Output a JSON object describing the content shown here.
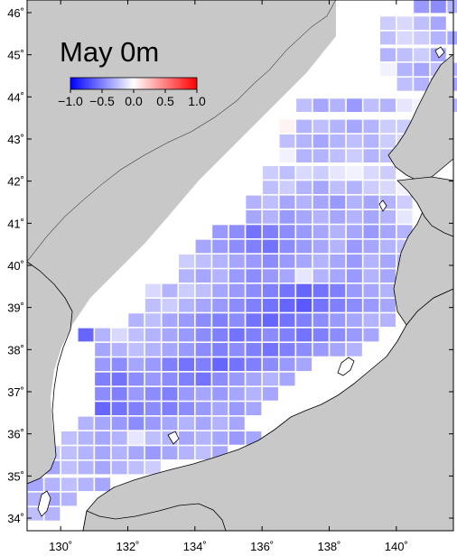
{
  "title": "May 0m",
  "colorbar": {
    "min": -1.0,
    "max": 1.0,
    "ticks": [
      "−1.0",
      "−0.5",
      "0.0",
      "0.5",
      "1.0"
    ],
    "tick_values": [
      -1.0,
      -0.5,
      0.0,
      0.5,
      1.0
    ],
    "low_color": "#0000ff",
    "mid_color": "#ffffff",
    "high_color": "#ff0000"
  },
  "axes": {
    "lon_range": [
      129,
      141.7
    ],
    "lat_range": [
      33.7,
      46.3
    ],
    "lon_ticks": [
      {
        "value": 130,
        "label": "130˚"
      },
      {
        "value": 132,
        "label": "132˚"
      },
      {
        "value": 134,
        "label": "134˚"
      },
      {
        "value": 136,
        "label": "136˚"
      },
      {
        "value": 138,
        "label": "138˚"
      },
      {
        "value": 140,
        "label": "140˚"
      }
    ],
    "lat_ticks": [
      {
        "value": 34,
        "label": "34˚"
      },
      {
        "value": 35,
        "label": "35˚"
      },
      {
        "value": 36,
        "label": "36˚"
      },
      {
        "value": 37,
        "label": "37˚"
      },
      {
        "value": 38,
        "label": "38˚"
      },
      {
        "value": 39,
        "label": "39˚"
      },
      {
        "value": 40,
        "label": "40˚"
      },
      {
        "value": 41,
        "label": "41˚"
      },
      {
        "value": 42,
        "label": "42˚"
      },
      {
        "value": 43,
        "label": "43˚"
      },
      {
        "value": 44,
        "label": "44˚"
      },
      {
        "value": 45,
        "label": "45˚"
      },
      {
        "value": 46,
        "label": "46˚"
      }
    ]
  },
  "colors": {
    "land": "#c8c8c8",
    "sea": "#ffffff",
    "coast": "#000000"
  },
  "grid": {
    "cell_lon": 0.5,
    "cell_lat": 0.35,
    "rows": [
      {
        "lat": 46.15,
        "lon_start": 140.5,
        "values": [
          -0.4,
          -0.45,
          -0.3
        ]
      },
      {
        "lat": 45.75,
        "lon_start": 139.5,
        "values": [
          -0.2,
          -0.15,
          -0.25,
          -0.35
        ]
      },
      {
        "lat": 45.4,
        "lon_start": 139.5,
        "values": [
          -0.25,
          -0.15,
          -0.2,
          -0.3,
          -0.35
        ]
      },
      {
        "lat": 45.0,
        "lon_start": 139.5,
        "values": [
          -0.3,
          -0.25,
          -0.2,
          -0.35
        ]
      },
      {
        "lat": 44.65,
        "lon_start": 139.5,
        "values": [
          -0.05,
          -0.3,
          -0.35,
          -0.25,
          -0.3
        ]
      },
      {
        "lat": 44.3,
        "lon_start": 140.0,
        "values": [
          -0.25,
          -0.3,
          -0.25,
          -0.35,
          -0.3
        ]
      },
      {
        "lat": 43.8,
        "lon_start": 137.0,
        "values": [
          -0.25,
          -0.35,
          -0.3,
          -0.4,
          -0.25,
          -0.3,
          -0.1,
          -0.05,
          -0.15,
          -0.3
        ]
      },
      {
        "lat": 43.3,
        "lon_start": 136.5,
        "values": [
          0.05,
          -0.3,
          -0.25,
          -0.3,
          -0.35,
          -0.3,
          -0.2,
          -0.2,
          -0.25
        ]
      },
      {
        "lat": 42.95,
        "lon_start": 136.5,
        "values": [
          -0.25,
          -0.3,
          -0.35,
          -0.3,
          -0.25,
          -0.3,
          -0.2,
          -0.15
        ]
      },
      {
        "lat": 42.6,
        "lon_start": 136.5,
        "values": [
          -0.05,
          -0.3,
          -0.3,
          -0.25,
          -0.2,
          -0.3,
          -0.25
        ]
      },
      {
        "lat": 42.2,
        "lon_start": 136.0,
        "values": [
          -0.2,
          -0.25,
          -0.15,
          -0.2,
          -0.1,
          -0.05,
          -0.15,
          -0.2
        ]
      },
      {
        "lat": 41.85,
        "lon_start": 136.0,
        "values": [
          -0.25,
          -0.2,
          -0.3,
          -0.35,
          -0.25,
          -0.3,
          -0.2,
          -0.15,
          -0.05
        ]
      },
      {
        "lat": 41.5,
        "lon_start": 135.5,
        "values": [
          -0.3,
          -0.25,
          -0.35,
          -0.3,
          -0.35,
          -0.4,
          -0.3,
          -0.35,
          -0.3,
          -0.2
        ]
      },
      {
        "lat": 41.15,
        "lon_start": 135.5,
        "values": [
          -0.35,
          -0.3,
          -0.4,
          -0.35,
          -0.3,
          -0.35,
          -0.3,
          -0.35,
          -0.3,
          -0.1
        ]
      },
      {
        "lat": 40.8,
        "lon_start": 134.5,
        "values": [
          -0.4,
          -0.45,
          -0.55,
          -0.5,
          -0.45,
          -0.4,
          -0.35,
          -0.3,
          -0.35,
          -0.4,
          -0.35,
          -0.3
        ]
      },
      {
        "lat": 40.45,
        "lon_start": 134.0,
        "values": [
          -0.35,
          -0.4,
          -0.45,
          -0.5,
          -0.55,
          -0.45,
          -0.4,
          -0.35,
          -0.3,
          -0.4,
          -0.35,
          -0.3,
          -0.25
        ]
      },
      {
        "lat": 40.1,
        "lon_start": 133.5,
        "values": [
          -0.2,
          -0.25,
          -0.3,
          -0.35,
          -0.4,
          -0.45,
          -0.4,
          -0.35,
          -0.3,
          -0.35,
          -0.4,
          -0.3,
          -0.35,
          -0.3
        ]
      },
      {
        "lat": 39.75,
        "lon_start": 133.5,
        "values": [
          -0.3,
          -0.35,
          -0.3,
          -0.4,
          -0.45,
          -0.4,
          -0.35,
          -0.1,
          -0.3,
          -0.35,
          -0.4,
          -0.3,
          -0.35
        ]
      },
      {
        "lat": 39.4,
        "lon_start": 132.5,
        "values": [
          -0.15,
          -0.3,
          -0.2,
          -0.25,
          -0.35,
          -0.4,
          -0.45,
          -0.5,
          -0.55,
          -0.6,
          -0.55,
          -0.5,
          -0.4,
          -0.35,
          -0.3
        ]
      },
      {
        "lat": 39.05,
        "lon_start": 132.5,
        "values": [
          -0.25,
          -0.2,
          -0.3,
          -0.35,
          -0.4,
          -0.45,
          -0.5,
          -0.55,
          -0.6,
          -0.65,
          -0.55,
          -0.5,
          -0.45,
          -0.4,
          -0.35
        ]
      },
      {
        "lat": 38.7,
        "lon_start": 132.0,
        "values": [
          -0.3,
          -0.25,
          -0.35,
          -0.4,
          -0.45,
          -0.5,
          -0.45,
          -0.55,
          -0.6,
          -0.55,
          -0.5,
          -0.45,
          -0.4,
          -0.35,
          -0.3,
          -0.3
        ]
      },
      {
        "lat": 38.35,
        "lon_start": 130.5,
        "values": [
          -0.6,
          -0.3,
          -0.15,
          -0.25,
          -0.3,
          -0.35,
          -0.4,
          -0.45,
          -0.5,
          -0.55,
          -0.5,
          -0.45,
          -0.5,
          -0.55,
          -0.5,
          -0.45,
          -0.4,
          -0.35
        ]
      },
      {
        "lat": 38.0,
        "lon_start": 131.0,
        "values": [
          -0.35,
          -0.3,
          -0.25,
          -0.3,
          -0.35,
          -0.4,
          -0.45,
          -0.5,
          -0.45,
          -0.5,
          -0.55,
          -0.5,
          -0.45,
          -0.4,
          -0.35,
          -0.3
        ]
      },
      {
        "lat": 37.65,
        "lon_start": 131.0,
        "values": [
          -0.4,
          -0.45,
          -0.35,
          -0.4,
          -0.5,
          -0.55,
          -0.5,
          -0.6,
          -0.55,
          -0.5,
          -0.45,
          -0.4,
          -0.35
        ]
      },
      {
        "lat": 37.3,
        "lon_start": 131.0,
        "values": [
          -0.5,
          -0.55,
          -0.45,
          -0.4,
          -0.45,
          -0.5,
          -0.55,
          -0.45,
          -0.4,
          -0.35,
          -0.3,
          -0.35
        ]
      },
      {
        "lat": 36.95,
        "lon_start": 131.0,
        "values": [
          -0.45,
          -0.5,
          -0.4,
          -0.45,
          -0.5,
          -0.4,
          -0.35,
          -0.4,
          -0.35,
          -0.3,
          -0.35
        ]
      },
      {
        "lat": 36.6,
        "lon_start": 131.0,
        "values": [
          -0.6,
          -0.55,
          -0.5,
          -0.45,
          -0.5,
          -0.45,
          -0.4,
          -0.35,
          -0.4,
          -0.35
        ]
      },
      {
        "lat": 36.25,
        "lon_start": 130.5,
        "values": [
          -0.3,
          -0.35,
          -0.4,
          -0.45,
          -0.4,
          -0.35,
          -0.3,
          -0.35,
          -0.3,
          -0.35
        ]
      },
      {
        "lat": 35.9,
        "lon_start": 130.0,
        "values": [
          -0.25,
          -0.3,
          -0.35,
          -0.3,
          -0.1,
          -0.25,
          -0.3,
          -0.35,
          -0.3,
          -0.35,
          -0.4,
          -0.35
        ]
      },
      {
        "lat": 35.55,
        "lon_start": 129.5,
        "values": [
          -0.2,
          -0.25,
          -0.3,
          -0.35,
          -0.3,
          -0.35,
          -0.4,
          -0.35,
          -0.3,
          -0.25,
          -0.35
        ]
      },
      {
        "lat": 35.2,
        "lon_start": 129.0,
        "values": [
          -0.3,
          -0.35,
          -0.25,
          -0.3,
          -0.35,
          -0.3,
          -0.25,
          -0.2
        ]
      },
      {
        "lat": 34.8,
        "lon_start": 129.0,
        "values": [
          -0.35,
          -0.3,
          -0.25,
          -0.3,
          -0.35
        ]
      },
      {
        "lat": 34.45,
        "lon_start": 129.0,
        "values": [
          -0.3,
          -0.35,
          -0.3
        ]
      },
      {
        "lat": 34.1,
        "lon_start": 129.0,
        "values": [
          -0.25,
          -0.3
        ]
      }
    ]
  }
}
